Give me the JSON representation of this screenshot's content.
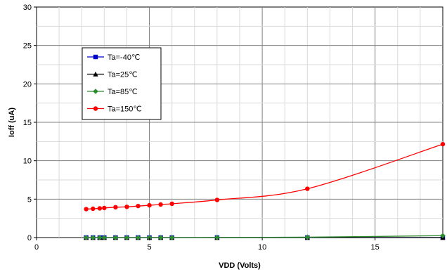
{
  "chart_data": {
    "type": "line",
    "xlabel": "VDD (Volts)",
    "ylabel": "Ioff (uA)",
    "xlim": [
      0,
      18
    ],
    "ylim": [
      0,
      30
    ],
    "x_ticks": [
      0,
      5,
      10,
      15
    ],
    "y_ticks": [
      0,
      5,
      10,
      15,
      20,
      25,
      30
    ],
    "grid": true,
    "legend_position": "upper-left",
    "x": [
      2.2,
      2.5,
      2.8,
      3.0,
      3.5,
      4.0,
      4.5,
      5.0,
      5.5,
      6.0,
      8.0,
      12.0,
      18.0
    ],
    "series": [
      {
        "name": "Ta=-40℃",
        "color": "#0000cc",
        "marker": "square",
        "values": [
          0,
          0,
          0,
          0,
          0,
          0,
          0,
          0,
          0,
          0,
          0,
          0,
          0
        ]
      },
      {
        "name": "Ta=25℃",
        "color": "#000000",
        "marker": "triangle",
        "values": [
          0,
          0,
          0,
          0,
          0,
          0,
          0,
          0,
          0,
          0,
          0,
          0,
          0
        ]
      },
      {
        "name": "Ta=85℃",
        "color": "#2e8b2e",
        "marker": "diamond",
        "values": [
          0,
          0,
          0,
          0,
          0,
          0,
          0,
          0,
          0,
          0,
          0.02,
          0.05,
          0.25
        ]
      },
      {
        "name": "Ta=150℃",
        "color": "#ff0000",
        "marker": "circle",
        "values": [
          3.7,
          3.75,
          3.8,
          3.85,
          3.95,
          4.0,
          4.1,
          4.2,
          4.3,
          4.4,
          4.9,
          6.35,
          12.15
        ]
      }
    ]
  }
}
